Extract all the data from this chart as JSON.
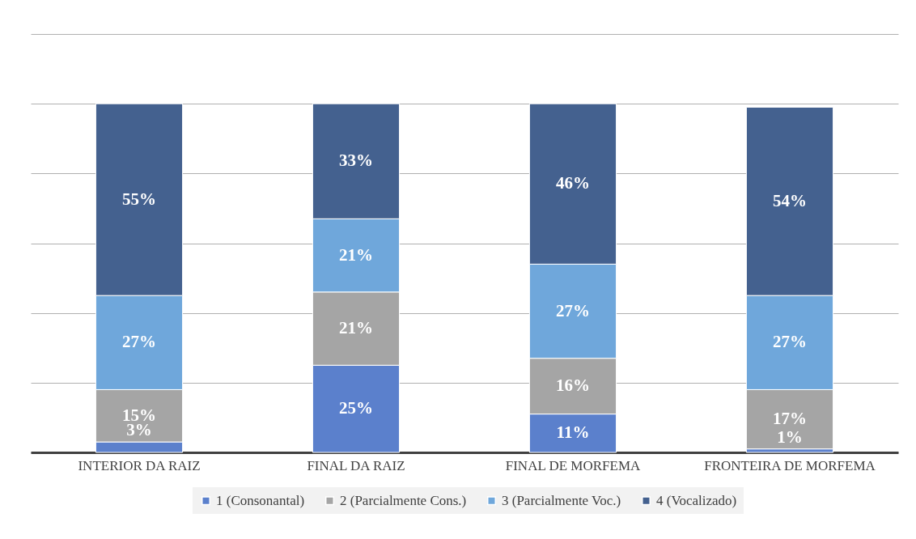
{
  "chart_data": {
    "type": "bar",
    "stacked": true,
    "categories": [
      "INTERIOR DA RAIZ",
      "FINAL DA RAIZ",
      "FINAL DE MORFEMA",
      "FRONTEIRA DE MORFEMA"
    ],
    "series": [
      {
        "name": "1 (Consonantal)",
        "color": "#5b80cc",
        "values": [
          3,
          25,
          11,
          1
        ],
        "value_labels": [
          "3%",
          "25%",
          "11%",
          "1%"
        ]
      },
      {
        "name": "2 (Parcialmente Cons.)",
        "color": "#a5a5a5",
        "values": [
          15,
          21,
          16,
          17
        ],
        "value_labels": [
          "15%",
          "21%",
          "16%",
          "17%"
        ]
      },
      {
        "name": "3 (Parcialmente Voc.)",
        "color": "#6fa7db",
        "values": [
          27,
          21,
          27,
          27
        ],
        "value_labels": [
          "27%",
          "21%",
          "27%",
          "27%"
        ]
      },
      {
        "name": "4 (Vocalizado)",
        "color": "#44618f",
        "values": [
          55,
          33,
          46,
          54
        ],
        "value_labels": [
          "55%",
          "33%",
          "46%",
          "54%"
        ]
      }
    ],
    "ylim": [
      0,
      120
    ],
    "yticks": [
      {
        "value": 0,
        "label": null
      },
      {
        "value": 20,
        "label": null
      },
      {
        "value": 40,
        "label": null
      },
      {
        "value": 60,
        "label": null
      },
      {
        "value": 80,
        "label": null
      },
      {
        "value": 100,
        "label": null
      },
      {
        "value": 120,
        "label": null
      }
    ],
    "grid": "y",
    "tick_labels": "x",
    "legend": "bottom"
  }
}
